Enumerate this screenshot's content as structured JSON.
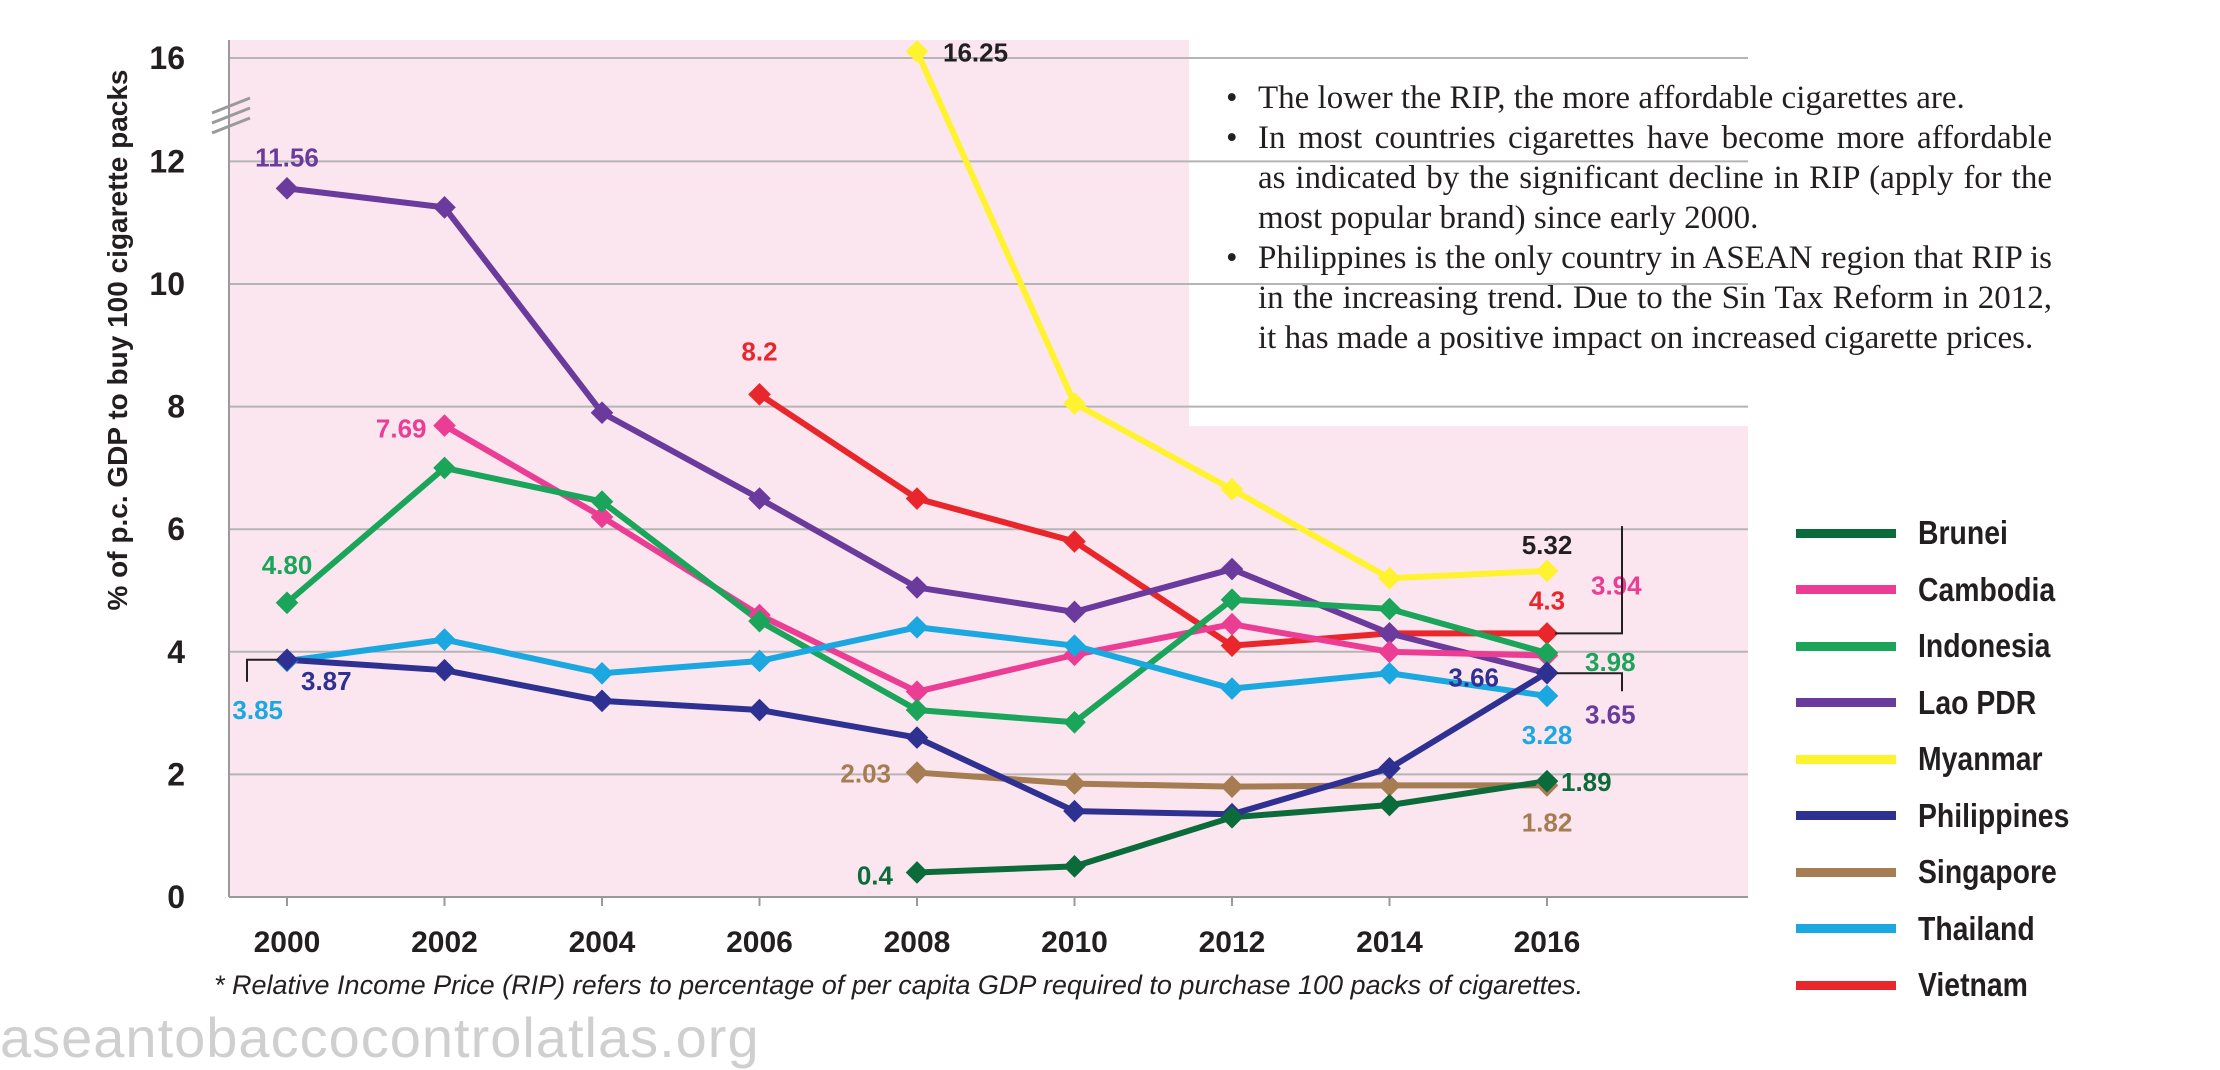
{
  "chart_data": {
    "type": "line",
    "x": [
      2000,
      2002,
      2004,
      2006,
      2008,
      2010,
      2012,
      2014,
      2016
    ],
    "ylabel": "% of p.c. GDP to buy 100 cigarette packs",
    "ylim": [
      0,
      16.25
    ],
    "yticks": [
      0,
      2,
      4,
      6,
      8,
      10,
      12,
      16
    ],
    "axis_break": "between 12 and 16",
    "series": [
      {
        "name": "Brunei",
        "color": "#0c6b3a",
        "values": [
          null,
          null,
          null,
          null,
          0.4,
          0.5,
          1.3,
          1.5,
          1.89
        ]
      },
      {
        "name": "Cambodia",
        "color": "#ec3d95",
        "values": [
          null,
          7.69,
          6.2,
          4.6,
          3.35,
          3.95,
          4.45,
          4.0,
          3.94
        ]
      },
      {
        "name": "Indonesia",
        "color": "#1aa55a",
        "values": [
          4.8,
          7.0,
          6.45,
          4.5,
          3.05,
          2.85,
          4.85,
          4.7,
          3.98
        ]
      },
      {
        "name": "Lao PDR",
        "color": "#6a3b9c",
        "values": [
          11.56,
          11.25,
          7.9,
          6.5,
          5.05,
          4.65,
          5.35,
          4.3,
          3.65
        ]
      },
      {
        "name": "Myanmar",
        "color": "#fff22e",
        "values": [
          null,
          null,
          null,
          null,
          16.25,
          8.05,
          6.65,
          5.2,
          5.32
        ]
      },
      {
        "name": "Philippines",
        "color": "#2e3192",
        "values": [
          3.87,
          3.7,
          3.2,
          3.05,
          2.6,
          1.4,
          1.35,
          2.1,
          3.66
        ]
      },
      {
        "name": "Singapore",
        "color": "#a67c52",
        "values": [
          null,
          null,
          null,
          null,
          2.03,
          1.85,
          1.8,
          1.82,
          1.82
        ]
      },
      {
        "name": "Thailand",
        "color": "#1ba7e0",
        "values": [
          3.85,
          4.2,
          3.65,
          3.85,
          4.4,
          4.1,
          3.4,
          3.65,
          3.28
        ]
      },
      {
        "name": "Vietnam",
        "color": "#e8262b",
        "values": [
          null,
          null,
          null,
          8.2,
          6.5,
          5.8,
          4.1,
          4.3,
          4.3
        ]
      }
    ],
    "data_labels": [
      {
        "series": "Lao PDR",
        "text": "11.56"
      },
      {
        "series": "Cambodia",
        "text": "7.69"
      },
      {
        "series": "Vietnam",
        "text": "8.2"
      },
      {
        "series": "Myanmar",
        "text": "16.25"
      },
      {
        "series": "Indonesia",
        "text": "4.80"
      },
      {
        "series": "Thailand",
        "text": "3.85"
      },
      {
        "series": "Philippines",
        "text": "3.87"
      },
      {
        "series": "Singapore",
        "text": "2.03"
      },
      {
        "series": "Brunei",
        "text": "0.4"
      },
      {
        "series": "Myanmar",
        "text": "5.32"
      },
      {
        "series": "Vietnam",
        "text": "4.3"
      },
      {
        "series": "Cambodia",
        "text": "3.94"
      },
      {
        "series": "Indonesia",
        "text": "3.98"
      },
      {
        "series": "Philippines",
        "text": "3.66"
      },
      {
        "series": "Thailand",
        "text": "3.28"
      },
      {
        "series": "Lao PDR",
        "text": "3.65"
      },
      {
        "series": "Brunei",
        "text": "1.89"
      },
      {
        "series": "Singapore",
        "text": "1.82"
      }
    ],
    "legend": "right"
  },
  "notes": [
    "The lower the RIP, the more affordable cigarettes are.",
    "In most countries cigarettes have become more affordable as indicated by the significant decline in RIP (apply for the most popular brand) since early 2000.",
    "Philippines is the only country in ASEAN region that RIP is in the increasing trend. Due to the Sin Tax Reform in 2012, it has made a positive impact on increased cigarette prices."
  ],
  "footnote": "* Relative Income Price (RIP) refers to percentage of per capita GDP required to purchase 100 packs of cigarettes.",
  "watermark": "aseantobaccocontrolatlas.org"
}
